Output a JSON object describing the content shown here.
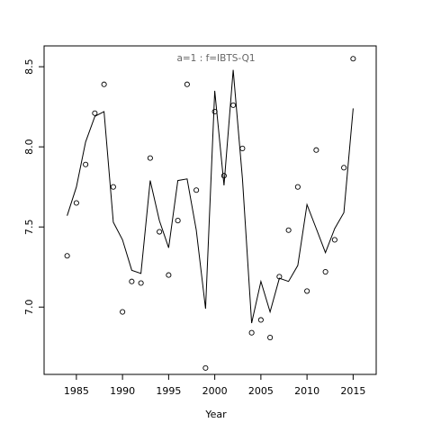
{
  "chart_data": {
    "type": "scatter",
    "title": "a=1  :  f=IBTS-Q1",
    "xlabel": "Year",
    "ylabel": "",
    "xlim": [
      1981.5,
      2017.5
    ],
    "ylim": [
      6.58,
      8.63
    ],
    "xticks": [
      1985,
      1990,
      1995,
      2000,
      2005,
      2010,
      2015
    ],
    "yticks": [
      7.0,
      7.5,
      8.0,
      8.5
    ],
    "ytick_labels": [
      "7.0",
      "7.5",
      "8.0",
      "8.5"
    ],
    "grid": false,
    "series": [
      {
        "kind": "points",
        "marker": "open-circle",
        "x": [
          1984,
          1985,
          1986,
          1987,
          1988,
          1989,
          1990,
          1991,
          1992,
          1993,
          1994,
          1995,
          1996,
          1997,
          1998,
          1999,
          2000,
          2001,
          2002,
          2003,
          2004,
          2005,
          2006,
          2007,
          2008,
          2009,
          2010,
          2011,
          2012,
          2013,
          2014,
          2015
        ],
        "y": [
          7.32,
          7.65,
          7.89,
          8.21,
          8.39,
          7.75,
          6.97,
          7.16,
          7.15,
          7.93,
          7.47,
          7.2,
          7.54,
          8.39,
          7.73,
          6.62,
          8.22,
          7.82,
          8.26,
          7.99,
          6.84,
          6.92,
          6.81,
          7.19,
          7.48,
          7.75,
          7.1,
          7.98,
          7.22,
          7.42,
          7.87,
          8.55
        ]
      },
      {
        "kind": "line",
        "x": [
          1984,
          1985,
          1986,
          1987,
          1988,
          1989,
          1990,
          1991,
          1992,
          1993,
          1994,
          1995,
          1996,
          1997,
          1998,
          1999,
          2000,
          2001,
          2002,
          2003,
          2004,
          2005,
          2006,
          2007,
          2008,
          2009,
          2010,
          2011,
          2012,
          2013,
          2014,
          2015
        ],
        "y": [
          7.57,
          7.75,
          8.03,
          8.19,
          8.22,
          7.53,
          7.42,
          7.23,
          7.21,
          7.79,
          7.54,
          7.37,
          7.79,
          7.8,
          7.48,
          6.99,
          8.35,
          7.76,
          8.48,
          7.8,
          6.9,
          7.16,
          6.97,
          7.18,
          7.16,
          7.26,
          7.64,
          7.49,
          7.34,
          7.49,
          7.59,
          8.24
        ]
      }
    ]
  }
}
